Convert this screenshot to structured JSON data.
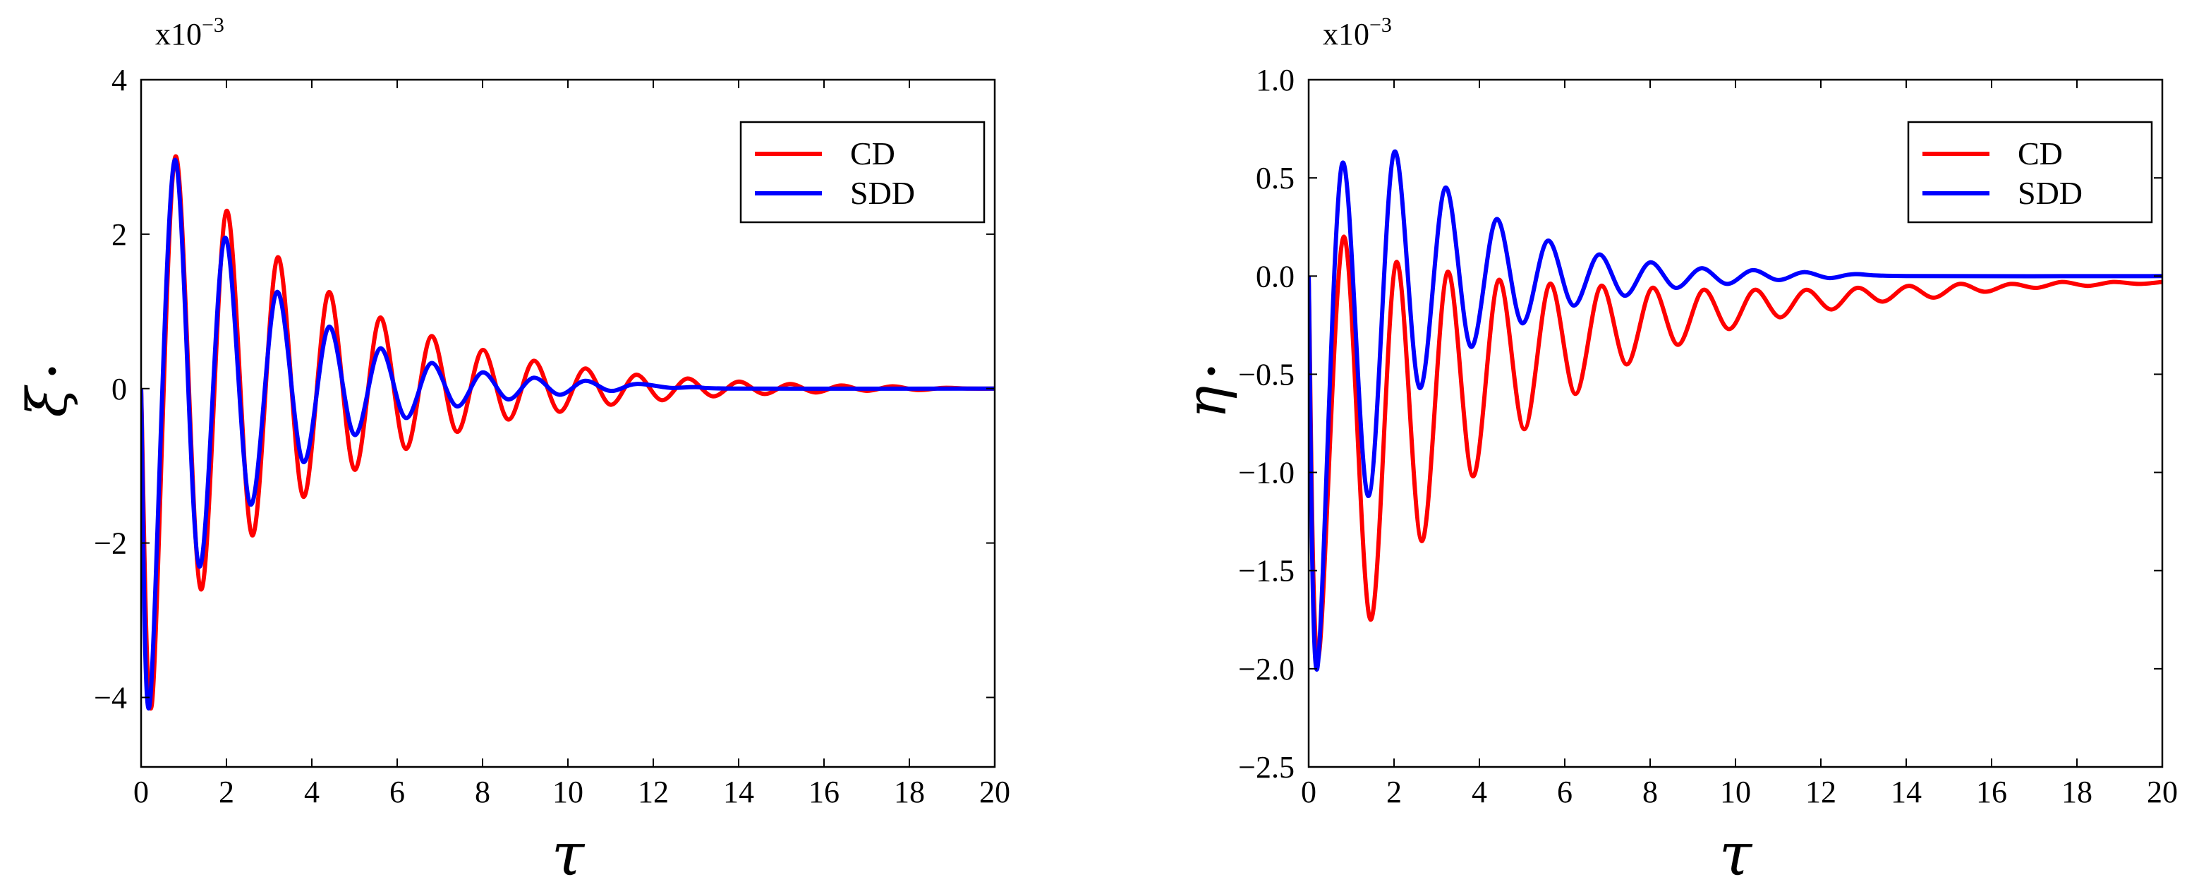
{
  "chart_data": [
    {
      "type": "line",
      "panel": "left",
      "xlabel": "τ",
      "ylabel": "ξ̇",
      "ylabel_base": "ξ",
      "multiplier": "x10",
      "multiplier_exp": "−3",
      "xlim": [
        0,
        20
      ],
      "ylim": [
        -4.9,
        4.0
      ],
      "xticks": [
        0,
        2,
        4,
        6,
        8,
        10,
        12,
        14,
        16,
        18,
        20
      ],
      "xtick_labels": [
        "0",
        "2",
        "4",
        "6",
        "8",
        "10",
        "12",
        "14",
        "16",
        "18",
        "20"
      ],
      "yticks": [
        -4,
        -2,
        0,
        2,
        4
      ],
      "ytick_labels": [
        "−4",
        "−2",
        "0",
        "2",
        "4"
      ],
      "legend_position": "top-right",
      "series": [
        {
          "name": "CD",
          "color": "#ff0000",
          "points": [
            [
              0,
              0
            ],
            [
              0.25,
              -4.1
            ],
            [
              0.8,
              3.0
            ],
            [
              1.4,
              -2.6
            ],
            [
              2.0,
              2.3
            ],
            [
              2.6,
              -1.9
            ],
            [
              3.2,
              1.7
            ],
            [
              3.8,
              -1.4
            ],
            [
              4.4,
              1.25
            ],
            [
              5.0,
              -1.05
            ],
            [
              5.6,
              0.92
            ],
            [
              6.2,
              -0.78
            ],
            [
              6.8,
              0.68
            ],
            [
              7.4,
              -0.56
            ],
            [
              8.0,
              0.5
            ],
            [
              8.6,
              -0.4
            ],
            [
              9.2,
              0.36
            ],
            [
              9.8,
              -0.3
            ],
            [
              10.4,
              0.26
            ],
            [
              11.0,
              -0.21
            ],
            [
              11.6,
              0.18
            ],
            [
              12.2,
              -0.15
            ],
            [
              12.8,
              0.13
            ],
            [
              13.4,
              -0.1
            ],
            [
              14.0,
              0.09
            ],
            [
              14.6,
              -0.07
            ],
            [
              15.2,
              0.06
            ],
            [
              15.8,
              -0.05
            ],
            [
              16.4,
              0.04
            ],
            [
              17.0,
              -0.03
            ],
            [
              17.6,
              0.03
            ],
            [
              18.2,
              -0.02
            ],
            [
              18.8,
              0.01
            ],
            [
              19.4,
              0.0
            ],
            [
              20,
              0.0
            ]
          ]
        },
        {
          "name": "SDD",
          "color": "#0000ff",
          "points": [
            [
              0,
              0
            ],
            [
              0.2,
              -4.1
            ],
            [
              0.78,
              2.95
            ],
            [
              1.36,
              -2.3
            ],
            [
              1.96,
              1.95
            ],
            [
              2.56,
              -1.5
            ],
            [
              3.18,
              1.25
            ],
            [
              3.8,
              -0.95
            ],
            [
              4.4,
              0.8
            ],
            [
              5.0,
              -0.6
            ],
            [
              5.6,
              0.52
            ],
            [
              6.2,
              -0.38
            ],
            [
              6.8,
              0.33
            ],
            [
              7.4,
              -0.23
            ],
            [
              8.0,
              0.21
            ],
            [
              8.6,
              -0.14
            ],
            [
              9.2,
              0.14
            ],
            [
              9.8,
              -0.08
            ],
            [
              10.4,
              0.1
            ],
            [
              11.0,
              -0.03
            ],
            [
              11.6,
              0.06
            ],
            [
              12.4,
              0.01
            ],
            [
              13.0,
              0.02
            ],
            [
              14.0,
              0.0
            ],
            [
              20,
              0.0
            ]
          ]
        }
      ]
    },
    {
      "type": "line",
      "panel": "right",
      "xlabel": "τ",
      "ylabel": "η̇",
      "ylabel_base": "η",
      "multiplier": "x10",
      "multiplier_exp": "−3",
      "xlim": [
        0,
        20
      ],
      "ylim": [
        -2.5,
        1.0
      ],
      "xticks": [
        0,
        2,
        4,
        6,
        8,
        10,
        12,
        14,
        16,
        18,
        20
      ],
      "xtick_labels": [
        "0",
        "2",
        "4",
        "6",
        "8",
        "10",
        "12",
        "14",
        "16",
        "18",
        "20"
      ],
      "yticks": [
        -2.5,
        -2.0,
        -1.5,
        -1.0,
        -0.5,
        0.0,
        0.5,
        1.0
      ],
      "ytick_labels": [
        "−2.5",
        "−2.0",
        "−1.5",
        "−1.0",
        "−0.5",
        "0.0",
        "0.5",
        "1.0"
      ],
      "legend_position": "top-right",
      "series": [
        {
          "name": "CD",
          "color": "#ff0000",
          "points": [
            [
              0,
              0
            ],
            [
              0.22,
              -1.95
            ],
            [
              0.82,
              0.2
            ],
            [
              1.45,
              -1.75
            ],
            [
              2.05,
              0.07
            ],
            [
              2.65,
              -1.35
            ],
            [
              3.25,
              0.02
            ],
            [
              3.85,
              -1.02
            ],
            [
              4.45,
              -0.02
            ],
            [
              5.05,
              -0.78
            ],
            [
              5.65,
              -0.04
            ],
            [
              6.25,
              -0.6
            ],
            [
              6.85,
              -0.05
            ],
            [
              7.45,
              -0.45
            ],
            [
              8.05,
              -0.06
            ],
            [
              8.65,
              -0.35
            ],
            [
              9.25,
              -0.07
            ],
            [
              9.85,
              -0.27
            ],
            [
              10.45,
              -0.07
            ],
            [
              11.05,
              -0.21
            ],
            [
              11.65,
              -0.07
            ],
            [
              12.25,
              -0.17
            ],
            [
              12.85,
              -0.06
            ],
            [
              13.45,
              -0.13
            ],
            [
              14.05,
              -0.05
            ],
            [
              14.65,
              -0.11
            ],
            [
              15.25,
              -0.04
            ],
            [
              15.85,
              -0.08
            ],
            [
              16.45,
              -0.04
            ],
            [
              17.05,
              -0.06
            ],
            [
              17.65,
              -0.03
            ],
            [
              18.25,
              -0.05
            ],
            [
              18.85,
              -0.03
            ],
            [
              19.45,
              -0.04
            ],
            [
              20,
              -0.03
            ]
          ]
        },
        {
          "name": "SDD",
          "color": "#0000ff",
          "points": [
            [
              0,
              0
            ],
            [
              0.2,
              -2.0
            ],
            [
              0.78,
              0.57
            ],
            [
              1.4,
              -1.12
            ],
            [
              2.0,
              0.63
            ],
            [
              2.6,
              -0.57
            ],
            [
              3.2,
              0.45
            ],
            [
              3.8,
              -0.36
            ],
            [
              4.4,
              0.29
            ],
            [
              5.0,
              -0.24
            ],
            [
              5.6,
              0.18
            ],
            [
              6.2,
              -0.15
            ],
            [
              6.8,
              0.11
            ],
            [
              7.4,
              -0.1
            ],
            [
              8.0,
              0.07
            ],
            [
              8.6,
              -0.06
            ],
            [
              9.2,
              0.04
            ],
            [
              9.8,
              -0.04
            ],
            [
              10.4,
              0.03
            ],
            [
              11.0,
              -0.02
            ],
            [
              11.6,
              0.02
            ],
            [
              12.2,
              -0.01
            ],
            [
              12.8,
              0.01
            ],
            [
              14.0,
              0.0
            ],
            [
              20,
              0.0
            ]
          ]
        }
      ]
    }
  ]
}
